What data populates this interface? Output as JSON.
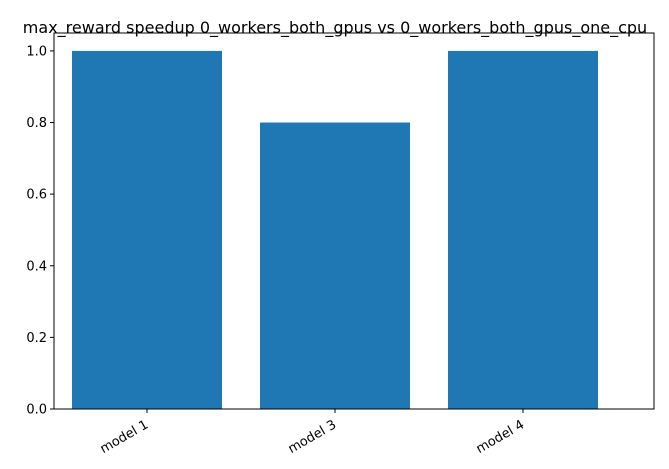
{
  "chart_data": {
    "type": "bar",
    "title": "max_reward speedup 0_workers_both_gpus vs 0_workers_both_gpus_one_cpu",
    "xlabel": "",
    "ylabel": "",
    "categories": [
      "model 1",
      "model 3",
      "model 4"
    ],
    "values": [
      1.0,
      0.8,
      1.0
    ],
    "ylim": [
      0,
      1.05
    ],
    "yticks": [
      "0.0",
      "0.2",
      "0.4",
      "0.6",
      "0.8",
      "1.0"
    ],
    "grid": false,
    "bar_color": "#1f77b4"
  }
}
